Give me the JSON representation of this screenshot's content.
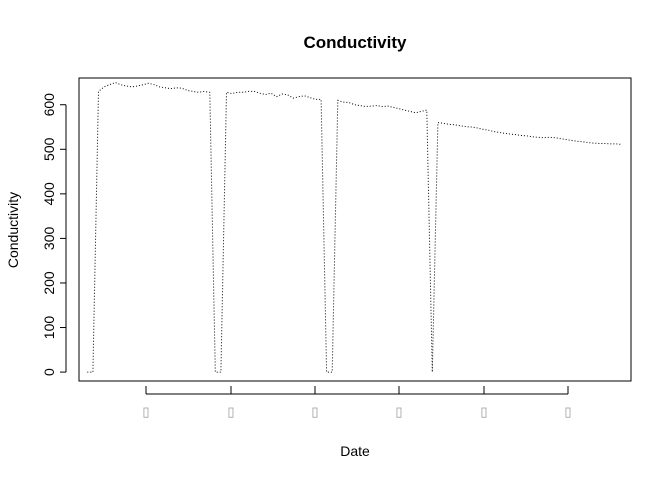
{
  "chart_data": {
    "type": "line",
    "title": "Conductivity",
    "xlabel": "Date",
    "ylabel": "Conductivity",
    "ylim": [
      -20,
      660
    ],
    "y_ticks": [
      0,
      100,
      200,
      300,
      400,
      500,
      600
    ],
    "x_tick_labels": [
      "▯",
      "▯",
      "▯",
      "▯",
      "▯",
      "▯"
    ],
    "line_style": "dotted",
    "grid": false,
    "legend": "none",
    "series": [
      {
        "points": [
          [
            0,
            0
          ],
          [
            1,
            0
          ],
          [
            2,
            630
          ],
          [
            3,
            640
          ],
          [
            4,
            645
          ],
          [
            5,
            650
          ],
          [
            6,
            645
          ],
          [
            7,
            642
          ],
          [
            8,
            640
          ],
          [
            9,
            642
          ],
          [
            10,
            645
          ],
          [
            11,
            648
          ],
          [
            12,
            645
          ],
          [
            13,
            640
          ],
          [
            14,
            638
          ],
          [
            15,
            636
          ],
          [
            16,
            638
          ],
          [
            17,
            637
          ],
          [
            18,
            632
          ],
          [
            19,
            630
          ],
          [
            20,
            628
          ],
          [
            21,
            630
          ],
          [
            22,
            628
          ],
          [
            23,
            0
          ],
          [
            24,
            0
          ],
          [
            25,
            628
          ],
          [
            26,
            625
          ],
          [
            27,
            628
          ],
          [
            28,
            628
          ],
          [
            29,
            630
          ],
          [
            30,
            630
          ],
          [
            31,
            626
          ],
          [
            32,
            623
          ],
          [
            33,
            626
          ],
          [
            34,
            618
          ],
          [
            35,
            624
          ],
          [
            36,
            622
          ],
          [
            37,
            615
          ],
          [
            38,
            618
          ],
          [
            39,
            620
          ],
          [
            40,
            616
          ],
          [
            41,
            612
          ],
          [
            42,
            612
          ],
          [
            43,
            0
          ],
          [
            44,
            0
          ],
          [
            45,
            610
          ],
          [
            46,
            606
          ],
          [
            47,
            605
          ],
          [
            48,
            600
          ],
          [
            49,
            598
          ],
          [
            50,
            596
          ],
          [
            51,
            597
          ],
          [
            52,
            598
          ],
          [
            53,
            596
          ],
          [
            54,
            597
          ],
          [
            55,
            594
          ],
          [
            56,
            591
          ],
          [
            57,
            588
          ],
          [
            58,
            585
          ],
          [
            59,
            582
          ],
          [
            60,
            585
          ],
          [
            61,
            588
          ],
          [
            62,
            0
          ],
          [
            63,
            560
          ],
          [
            64,
            558
          ],
          [
            65,
            556
          ],
          [
            66,
            555
          ],
          [
            67,
            553
          ],
          [
            68,
            551
          ],
          [
            69,
            550
          ],
          [
            70,
            548
          ],
          [
            71,
            545
          ],
          [
            72,
            543
          ],
          [
            73,
            540
          ],
          [
            74,
            538
          ],
          [
            75,
            536
          ],
          [
            76,
            534
          ],
          [
            77,
            533
          ],
          [
            78,
            531
          ],
          [
            79,
            530
          ],
          [
            80,
            528
          ],
          [
            81,
            527
          ],
          [
            82,
            526
          ],
          [
            83,
            527
          ],
          [
            84,
            526
          ],
          [
            85,
            524
          ],
          [
            86,
            522
          ],
          [
            87,
            520
          ],
          [
            88,
            518
          ],
          [
            89,
            517
          ],
          [
            90,
            515
          ],
          [
            91,
            514
          ],
          [
            92,
            513
          ],
          [
            93,
            513
          ],
          [
            94,
            512
          ],
          [
            95,
            512
          ],
          [
            96,
            511
          ]
        ]
      }
    ]
  }
}
